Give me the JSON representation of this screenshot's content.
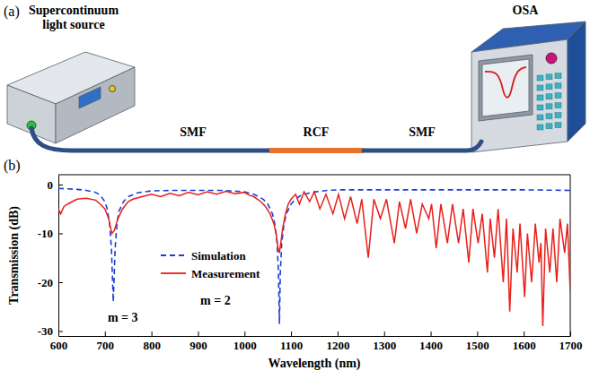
{
  "panel_labels": [
    "(a)",
    "(b)"
  ],
  "diagram": {
    "source": "Supercontinuum light source",
    "analyzer": "OSA",
    "fibers": [
      "SMF",
      "RCF",
      "SMF"
    ]
  },
  "chart_data": {
    "type": "line",
    "xlabel": "Wavelength (nm)",
    "ylabel": "Transmission (dB)",
    "xlim": [
      600,
      1700
    ],
    "xticks": [
      600,
      700,
      800,
      900,
      1000,
      1100,
      1200,
      1300,
      1400,
      1500,
      1600,
      1700
    ],
    "ylim": [
      -31,
      2
    ],
    "yticks": [
      -30,
      -20,
      -10,
      0
    ],
    "grid": false,
    "legend": "center left",
    "annotations": [
      {
        "text": "m = 3",
        "x": 706,
        "y": -28
      },
      {
        "text": "m = 2",
        "x": 905,
        "y": -24.5
      }
    ],
    "series": [
      {
        "name": "Simulation",
        "color": "#1a3fd6",
        "line_style": "dashed",
        "x": [
          600,
          620,
          640,
          660,
          680,
          690,
          700,
          705,
          710,
          714,
          718,
          722,
          726,
          730,
          740,
          750,
          770,
          800,
          850,
          900,
          950,
          1000,
          1020,
          1040,
          1050,
          1060,
          1065,
          1070,
          1073,
          1075,
          1077,
          1080,
          1085,
          1090,
          1100,
          1110,
          1120,
          1140,
          1160,
          1180,
          1200,
          1250,
          1300,
          1400,
          1500,
          1600,
          1700
        ],
        "values": [
          -0.8,
          -0.9,
          -1.0,
          -1.2,
          -1.6,
          -2.2,
          -3.5,
          -5,
          -8,
          -13,
          -24,
          -13,
          -8,
          -5.5,
          -3.5,
          -2.5,
          -1.7,
          -1.3,
          -1.2,
          -1.2,
          -1.2,
          -1.5,
          -2,
          -3,
          -4,
          -6,
          -8,
          -12,
          -18,
          -28.5,
          -18,
          -12,
          -8,
          -6,
          -4,
          -3,
          -2.3,
          -1.7,
          -1.4,
          -1.2,
          -1.1,
          -1.1,
          -1.1,
          -1.1,
          -1.1,
          -1.1,
          -1.2
        ]
      },
      {
        "name": "Measurement",
        "color": "#e8201a",
        "line_style": "solid",
        "x": [
          600,
          605,
          612,
          620,
          630,
          640,
          660,
          680,
          690,
          700,
          708,
          715,
          720,
          728,
          738,
          750,
          760,
          780,
          800,
          820,
          840,
          860,
          880,
          900,
          920,
          940,
          960,
          980,
          1000,
          1010,
          1020,
          1035,
          1045,
          1055,
          1063,
          1068,
          1072,
          1075,
          1078,
          1082,
          1088,
          1094,
          1100,
          1110,
          1118,
          1128,
          1140,
          1150,
          1162,
          1175,
          1190,
          1202,
          1215,
          1228,
          1242,
          1252,
          1266,
          1278,
          1292,
          1305,
          1322,
          1333,
          1346,
          1357,
          1370,
          1382,
          1396,
          1402,
          1412,
          1422,
          1436,
          1447,
          1460,
          1470,
          1482,
          1491,
          1502,
          1511,
          1522,
          1528,
          1537,
          1545,
          1556,
          1563,
          1570,
          1577,
          1586,
          1592,
          1602,
          1608,
          1617,
          1625,
          1633,
          1637,
          1641,
          1647,
          1656,
          1663,
          1671,
          1678,
          1688,
          1694,
          1700
        ],
        "values": [
          -5,
          -6,
          -4.5,
          -4,
          -3.5,
          -3,
          -2.8,
          -3.2,
          -4,
          -5,
          -7,
          -10,
          -9.5,
          -7,
          -5,
          -3.5,
          -3,
          -2.5,
          -2,
          -2.5,
          -1.8,
          -2.3,
          -1.6,
          -2.1,
          -1.5,
          -2,
          -1.4,
          -1.9,
          -1.6,
          -2.2,
          -2.5,
          -3.5,
          -4.5,
          -6,
          -8,
          -10,
          -13,
          -14,
          -12,
          -9,
          -6,
          -4,
          -3,
          -2,
          -4,
          -1.5,
          -3.5,
          -1.5,
          -5,
          -2,
          -6,
          -2,
          -7,
          -2.5,
          -8,
          -3,
          -15,
          -3,
          -7,
          -3,
          -12,
          -3.5,
          -9,
          -3,
          -10,
          -4,
          -7,
          -4,
          -13,
          -4,
          -12,
          -4,
          -12,
          -5,
          -16,
          -5,
          -12,
          -6,
          -18,
          -7,
          -15,
          -5,
          -20,
          -7,
          -26,
          -9,
          -18,
          -8,
          -23,
          -10,
          -20,
          -8,
          -16,
          -12,
          -29,
          -9,
          -18,
          -9,
          -20,
          -7,
          -14,
          -8,
          -22
        ]
      }
    ]
  }
}
